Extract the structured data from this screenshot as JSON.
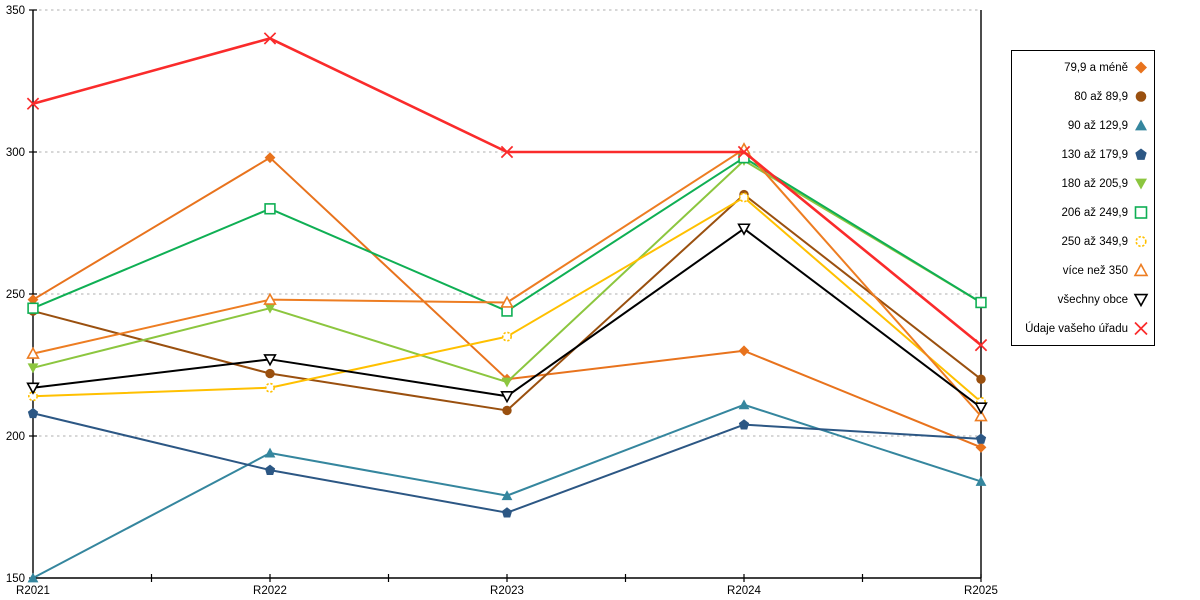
{
  "chart_data": {
    "type": "line",
    "title": "",
    "xlabel": "",
    "ylabel": "",
    "x_labels": [
      "R2021",
      "R2022",
      "R2023",
      "R2024",
      "R2025"
    ],
    "y_ticks": [
      150,
      200,
      250,
      300,
      350
    ],
    "ylim": [
      150,
      350
    ],
    "grid": "horizontal-dotted",
    "legend_position": "right-outside-box",
    "series": [
      {
        "name": "79,9 a méně",
        "color": "#E8731D",
        "marker": "diamond",
        "filled": true,
        "dashed_marker": false,
        "line_width": 2,
        "values": [
          248,
          298,
          220,
          230,
          196
        ]
      },
      {
        "name": "80 až 89,9",
        "color": "#9A500F",
        "marker": "circle",
        "filled": true,
        "dashed_marker": false,
        "line_width": 2,
        "values": [
          244,
          222,
          209,
          285,
          220
        ]
      },
      {
        "name": "90 až 129,9",
        "color": "#35869E",
        "marker": "triangle-up",
        "filled": true,
        "dashed_marker": false,
        "line_width": 2,
        "values": [
          150,
          194,
          179,
          211,
          184
        ]
      },
      {
        "name": "130 až 179,9",
        "color": "#2C5784",
        "marker": "pentagon",
        "filled": true,
        "dashed_marker": false,
        "line_width": 2,
        "values": [
          208,
          188,
          173,
          204,
          199
        ]
      },
      {
        "name": "180 až 205,9",
        "color": "#8CC63F",
        "marker": "triangle-down",
        "filled": true,
        "dashed_marker": false,
        "line_width": 2,
        "values": [
          224,
          245,
          219,
          297,
          247
        ]
      },
      {
        "name": "206 až 249,9",
        "color": "#0FAF54",
        "marker": "square",
        "filled": false,
        "dashed_marker": false,
        "line_width": 2,
        "values": [
          245,
          280,
          244,
          298,
          247
        ]
      },
      {
        "name": "250 až 349,9",
        "color": "#FFC000",
        "marker": "circle",
        "filled": false,
        "dashed_marker": true,
        "line_width": 2,
        "values": [
          214,
          217,
          235,
          284,
          212
        ]
      },
      {
        "name": "více než 350",
        "color": "#ED7D22",
        "marker": "triangle-up",
        "filled": false,
        "dashed_marker": false,
        "line_width": 2,
        "values": [
          229,
          248,
          247,
          301,
          207
        ]
      },
      {
        "name": "všechny obce",
        "color": "#000000",
        "marker": "triangle-down",
        "filled": false,
        "dashed_marker": false,
        "line_width": 2,
        "values": [
          217,
          227,
          214,
          273,
          210
        ]
      },
      {
        "name": "Údaje vašeho úřadu",
        "color": "#FA2B2B",
        "marker": "x",
        "filled": false,
        "dashed_marker": false,
        "line_width": 2.6,
        "values": [
          317,
          340,
          300,
          300,
          232
        ]
      }
    ]
  },
  "colors": {
    "background": "#FFFFFF",
    "gridline": "#BFBFBF",
    "axis": "#000000",
    "legend_border": "#000000"
  }
}
